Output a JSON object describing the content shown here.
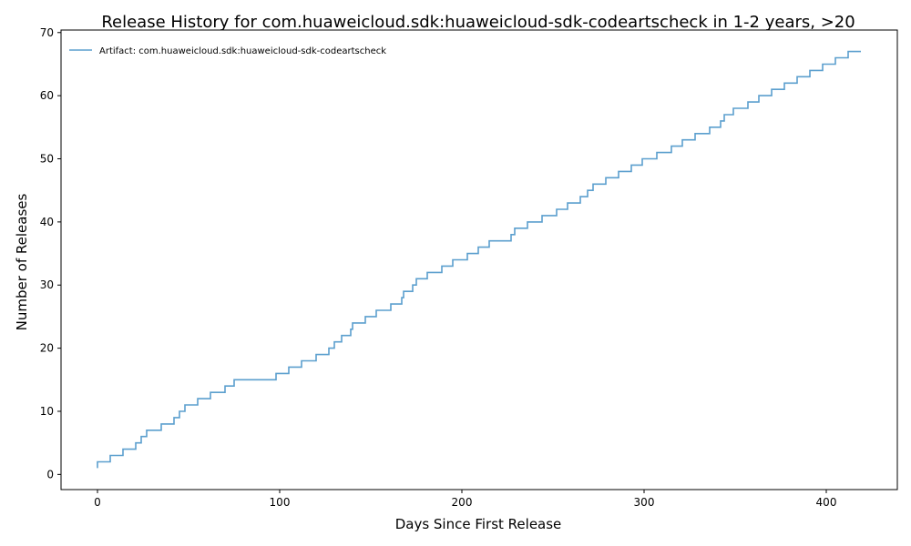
{
  "chart_data": {
    "type": "line",
    "step": "post",
    "title": "Release History for com.huaweicloud.sdk:huaweicloud-sdk-codeartscheck in 1-2 years, >20",
    "xlabel": "Days Since First Release",
    "ylabel": "Number of Releases",
    "xlim": [
      -20,
      439
    ],
    "ylim": [
      -2.4,
      70.4
    ],
    "xticks": [
      0,
      100,
      200,
      300,
      400
    ],
    "yticks": [
      0,
      10,
      20,
      30,
      40,
      50,
      60,
      70
    ],
    "grid": false,
    "legend_position": "top-left",
    "series": [
      {
        "name": "Artifact: com.huaweicloud.sdk:huaweicloud-sdk-codeartscheck",
        "color": "#5b9fce",
        "x": [
          0,
          0,
          7,
          14,
          21,
          24,
          27,
          35,
          42,
          45,
          48,
          55,
          62,
          70,
          75,
          98,
          105,
          112,
          120,
          127,
          130,
          134,
          139,
          140,
          147,
          153,
          161,
          167,
          168,
          173,
          175,
          181,
          189,
          195,
          203,
          209,
          215,
          227,
          229,
          236,
          244,
          252,
          258,
          265,
          269,
          272,
          279,
          286,
          293,
          299,
          307,
          315,
          321,
          328,
          336,
          342,
          344,
          349,
          357,
          363,
          370,
          377,
          384,
          391,
          398,
          405,
          412,
          419
        ],
        "y": [
          1,
          2,
          3,
          4,
          5,
          6,
          7,
          8,
          9,
          10,
          11,
          12,
          13,
          14,
          15,
          16,
          17,
          18,
          19,
          20,
          21,
          22,
          23,
          24,
          25,
          26,
          27,
          28,
          29,
          30,
          31,
          32,
          33,
          34,
          35,
          36,
          37,
          38,
          39,
          40,
          41,
          42,
          43,
          44,
          45,
          46,
          47,
          48,
          49,
          50,
          51,
          52,
          53,
          54,
          55,
          56,
          57,
          58,
          59,
          60,
          61,
          62,
          63,
          64,
          65,
          66,
          67,
          67
        ]
      }
    ]
  }
}
